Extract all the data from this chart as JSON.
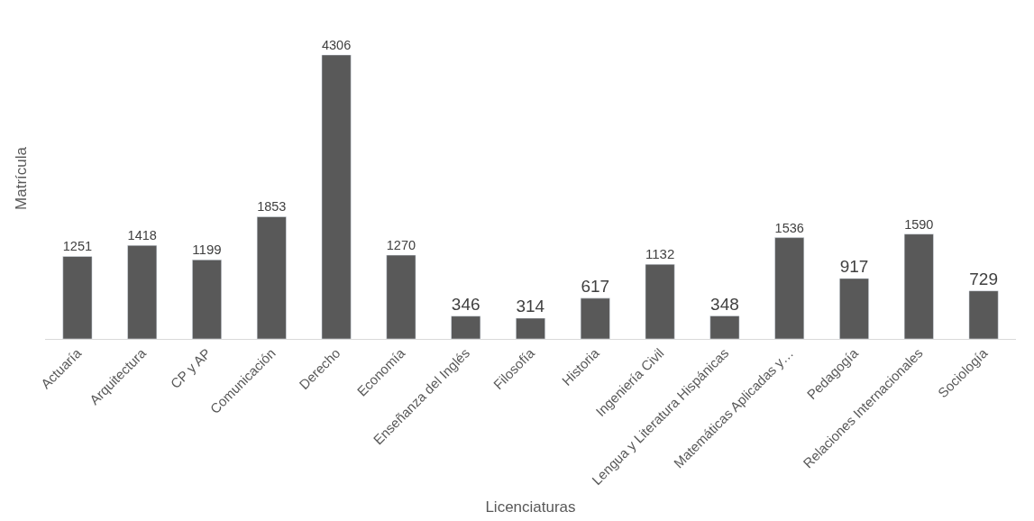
{
  "chart_data": {
    "type": "bar",
    "xlabel": "Licenciaturas",
    "ylabel": "Matrícula",
    "categories": [
      "Actuaría",
      "Arquitectura",
      "CP y AP",
      "Comunicación",
      "Derecho",
      "Economía",
      "Enseñanza del Inglés",
      "Filosofía",
      "Historia",
      "Ingeniería Civil",
      "Lengua y Literatura Hispánicas",
      "Matemáticas Aplicadas y…",
      "Pedagogía",
      "Relaciones Internacionales",
      "Sociología"
    ],
    "values": [
      1251,
      1418,
      1199,
      1853,
      4306,
      1270,
      346,
      314,
      617,
      1132,
      348,
      1536,
      917,
      1590,
      729
    ],
    "color": "#595959",
    "data_labels": true,
    "grid": false,
    "legend": false,
    "tick_labels": "x"
  }
}
